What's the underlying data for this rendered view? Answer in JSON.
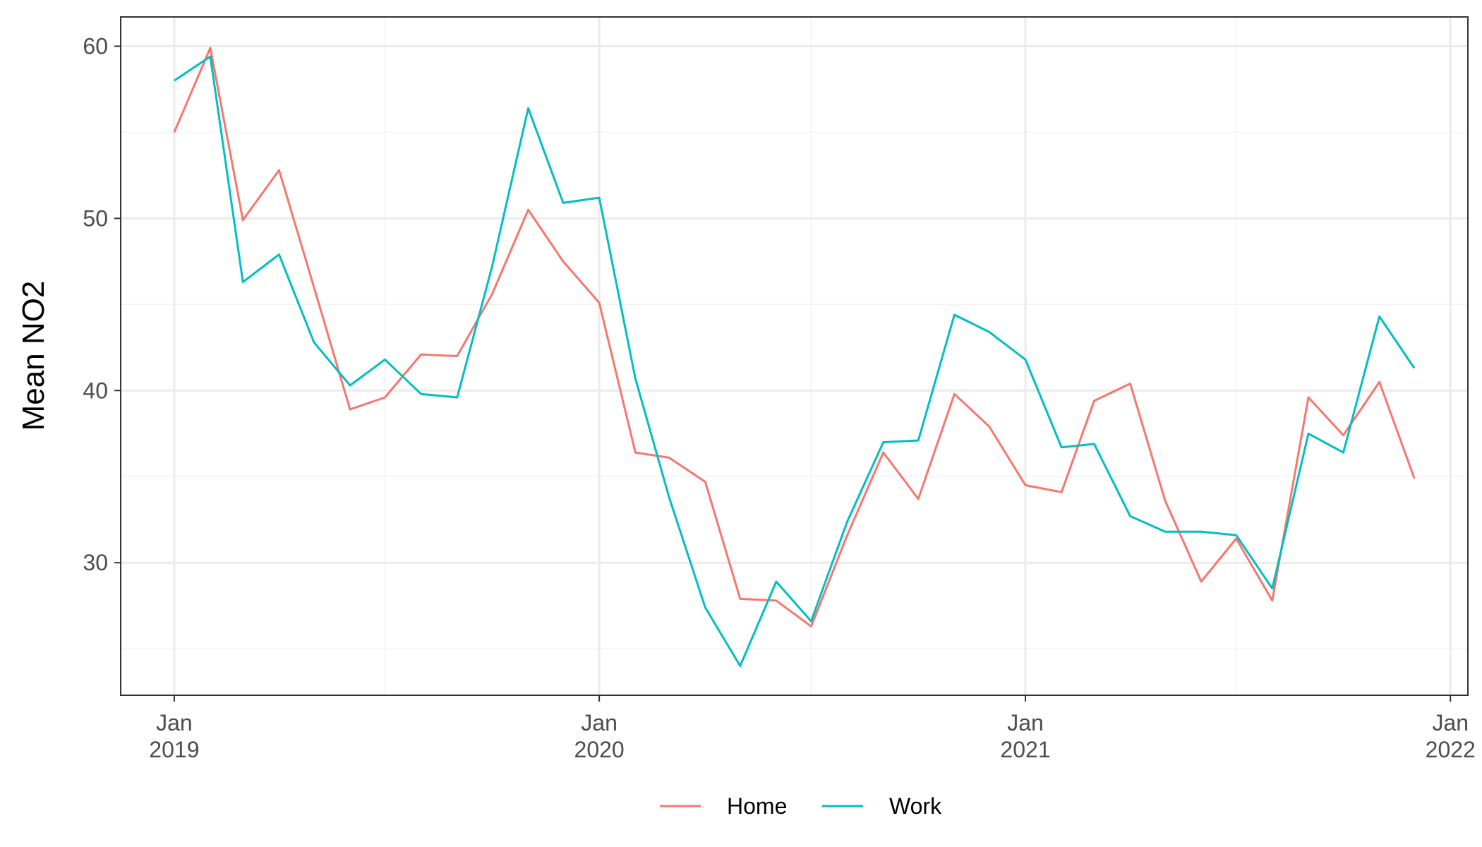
{
  "chart_data": {
    "type": "line",
    "title": "",
    "xlabel": "",
    "ylabel": "Mean NO2",
    "x_unit": "month",
    "x": [
      "2019-01",
      "2019-02",
      "2019-03",
      "2019-04",
      "2019-05",
      "2019-06",
      "2019-07",
      "2019-08",
      "2019-09",
      "2019-10",
      "2019-11",
      "2019-12",
      "2020-01",
      "2020-02",
      "2020-03",
      "2020-04",
      "2020-05",
      "2020-06",
      "2020-07",
      "2020-08",
      "2020-09",
      "2020-10",
      "2020-11",
      "2020-12",
      "2021-01",
      "2021-02",
      "2021-03",
      "2021-04",
      "2021-05",
      "2021-06",
      "2021-07",
      "2021-08",
      "2021-09",
      "2021-10",
      "2021-11",
      "2021-12"
    ],
    "xlim": [
      "2018-11-16",
      "2022-01-16"
    ],
    "x_ticks": [
      {
        "date": "2019-01",
        "line1": "Jan",
        "line2": "2019"
      },
      {
        "date": "2020-01",
        "line1": "Jan",
        "line2": "2020"
      },
      {
        "date": "2021-01",
        "line1": "Jan",
        "line2": "2021"
      },
      {
        "date": "2022-01",
        "line1": "Jan",
        "line2": "2022"
      }
    ],
    "x_minor_gridlines": [
      "2019-07",
      "2020-07",
      "2021-07"
    ],
    "ylim": [
      22.3,
      61.7
    ],
    "y_ticks": [
      30,
      40,
      50,
      60
    ],
    "y_minor_gridlines": [
      25,
      35,
      45,
      55
    ],
    "grid": true,
    "legend_position": "bottom",
    "series": [
      {
        "name": "Home",
        "color": "#F8766D",
        "values": [
          55.0,
          59.9,
          49.9,
          52.8,
          46.0,
          38.9,
          39.6,
          42.1,
          42.0,
          45.6,
          50.5,
          47.5,
          45.1,
          36.4,
          36.1,
          34.7,
          27.9,
          27.8,
          26.3,
          31.6,
          36.4,
          33.7,
          39.8,
          37.9,
          34.5,
          34.1,
          39.4,
          40.4,
          33.6,
          28.9,
          31.4,
          27.8,
          39.6,
          37.4,
          40.5,
          34.9
        ]
      },
      {
        "name": "Work",
        "color": "#00BFC4",
        "values": [
          58.0,
          59.4,
          46.3,
          47.9,
          42.8,
          40.3,
          41.8,
          39.8,
          39.6,
          47.2,
          56.4,
          50.9,
          51.2,
          40.7,
          33.8,
          27.4,
          24.0,
          28.9,
          26.6,
          32.4,
          37.0,
          37.1,
          44.4,
          43.4,
          41.8,
          36.7,
          36.9,
          32.7,
          31.8,
          31.8,
          31.6,
          28.5,
          37.5,
          36.4,
          44.3,
          41.3
        ]
      }
    ]
  }
}
